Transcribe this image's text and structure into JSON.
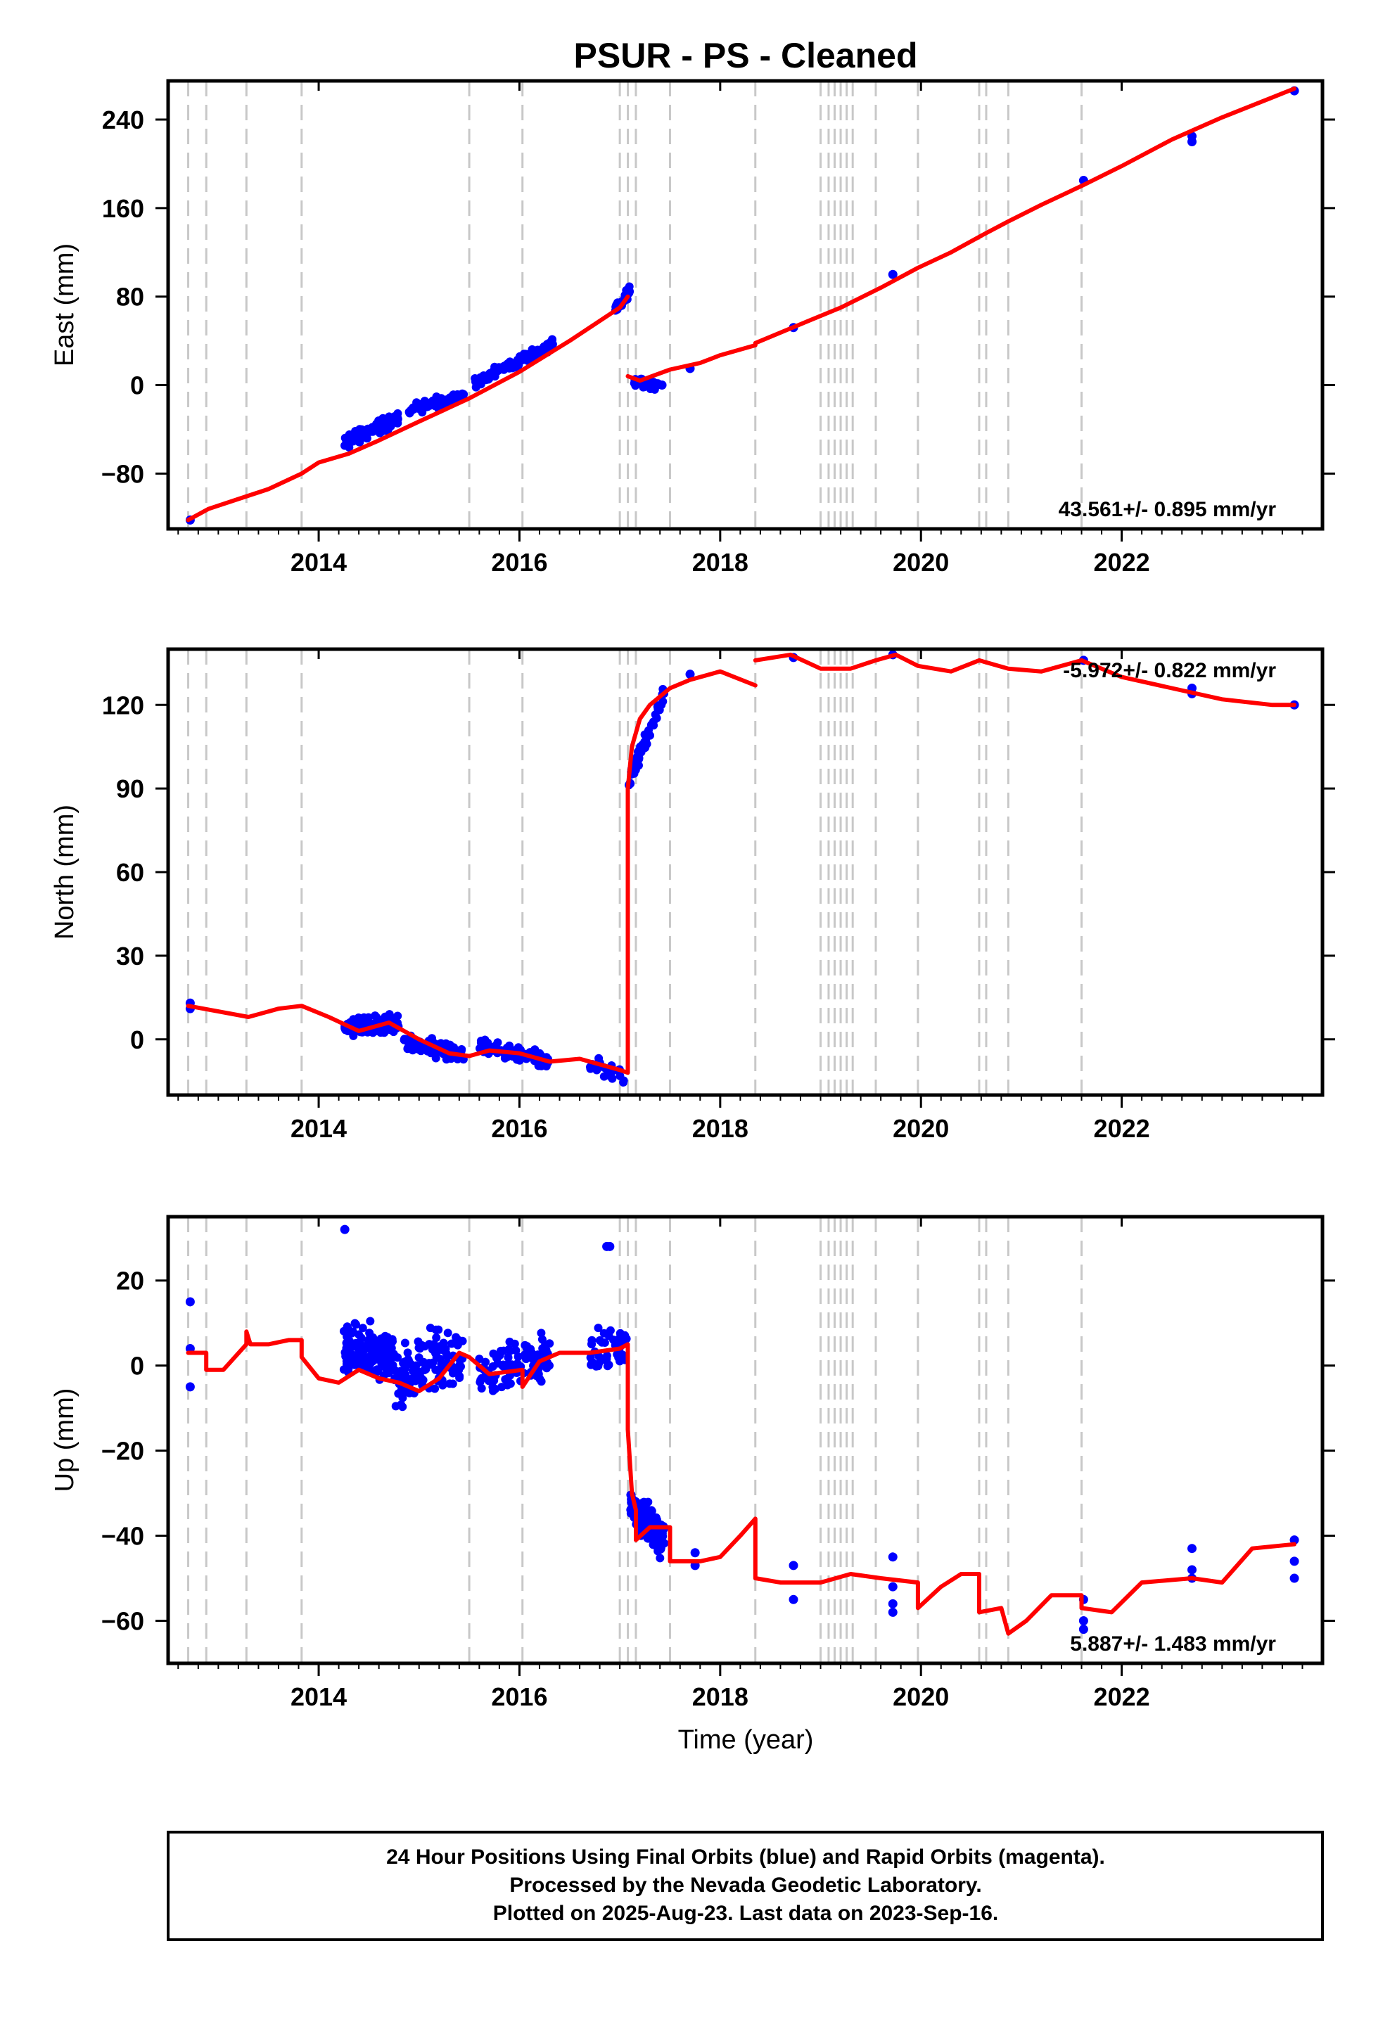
{
  "chart_data": {
    "type": "scatter",
    "title": "PSUR  - PS - Cleaned",
    "xlabel": "Time (year)",
    "xlim": [
      2012.5,
      2024.0
    ],
    "x_ticks": [
      2014,
      2016,
      2018,
      2020,
      2022
    ],
    "event_lines": [
      2012.7,
      2012.88,
      2013.28,
      2013.83,
      2015.5,
      2016.03,
      2017.0,
      2017.08,
      2017.16,
      2017.5,
      2018.35,
      2019.0,
      2019.08,
      2019.14,
      2019.2,
      2019.26,
      2019.32,
      2019.55,
      2019.97,
      2020.58,
      2020.65,
      2020.87,
      2021.6
    ],
    "series_info": [
      {
        "role": "observations",
        "color": "#0000ff"
      },
      {
        "role": "model",
        "color": "#ff0000"
      }
    ],
    "panels": [
      {
        "ylabel": "East (mm)",
        "ylim": [
          -130,
          275
        ],
        "y_ticks": [
          -80,
          0,
          80,
          160,
          240
        ],
        "y_tick_labels": [
          "−80",
          "0",
          "80",
          "160",
          "240"
        ],
        "rate_text": "43.561+/- 0.895 mm/yr",
        "rate_position": "bottom-right",
        "model_segments": [
          [
            [
              2012.7,
              -122
            ],
            [
              2012.9,
              -112
            ],
            [
              2013.2,
              -103
            ],
            [
              2013.5,
              -94
            ],
            [
              2013.83,
              -80
            ],
            [
              2014.0,
              -70
            ],
            [
              2014.3,
              -62
            ],
            [
              2014.6,
              -50
            ],
            [
              2015.0,
              -33
            ],
            [
              2015.5,
              -12
            ],
            [
              2016.0,
              12
            ],
            [
              2016.5,
              40
            ],
            [
              2017.0,
              70
            ],
            [
              2017.08,
              80
            ]
          ],
          [
            [
              2017.08,
              8
            ],
            [
              2017.2,
              4
            ],
            [
              2017.5,
              14
            ],
            [
              2017.8,
              20
            ],
            [
              2018.0,
              27
            ],
            [
              2018.35,
              36
            ]
          ],
          [
            [
              2018.35,
              38
            ],
            [
              2018.8,
              55
            ],
            [
              2019.2,
              70
            ],
            [
              2019.6,
              88
            ],
            [
              2019.97,
              106
            ],
            [
              2020.3,
              120
            ],
            [
              2020.6,
              135
            ],
            [
              2020.87,
              148
            ],
            [
              2021.2,
              163
            ],
            [
              2021.6,
              180
            ],
            [
              2022.0,
              198
            ],
            [
              2022.5,
              222
            ],
            [
              2023.0,
              242
            ],
            [
              2023.5,
              260
            ],
            [
              2023.72,
              268
            ]
          ]
        ],
        "observations": {
          "points": [
            [
              2012.72,
              -122
            ],
            [
              2017.42,
              0
            ],
            [
              2017.7,
              15
            ],
            [
              2018.73,
              52
            ],
            [
              2019.72,
              100
            ],
            [
              2021.62,
              185
            ],
            [
              2022.7,
              225
            ],
            [
              2022.7,
              220
            ],
            [
              2023.72,
              266
            ]
          ],
          "clusters": [
            {
              "x_range": [
                2014.25,
                2014.8
              ],
              "trend": [
                -52,
                -30
              ],
              "noise": 5,
              "count": 120
            },
            {
              "x_range": [
                2014.9,
                2015.45
              ],
              "trend": [
                -22,
                -10
              ],
              "noise": 4,
              "count": 80
            },
            {
              "x_range": [
                2015.55,
                2016.35
              ],
              "trend": [
                2,
                38
              ],
              "noise": 4,
              "count": 110
            },
            {
              "x_range": [
                2016.95,
                2017.1
              ],
              "trend": [
                70,
                84
              ],
              "noise": 5,
              "count": 35
            },
            {
              "x_range": [
                2017.12,
                2017.38
              ],
              "trend": [
                4,
                -1
              ],
              "noise": 3,
              "count": 40
            }
          ]
        }
      },
      {
        "ylabel": "North (mm)",
        "ylim": [
          -20,
          140
        ],
        "y_ticks": [
          0,
          30,
          60,
          90,
          120
        ],
        "y_tick_labels": [
          "0",
          "30",
          "60",
          "90",
          "120"
        ],
        "rate_text": "-5.972+/- 0.822 mm/yr",
        "rate_position": "top-right",
        "model_segments": [
          [
            [
              2012.7,
              12
            ],
            [
              2013.0,
              10
            ],
            [
              2013.3,
              8
            ],
            [
              2013.6,
              11
            ],
            [
              2013.83,
              12
            ],
            [
              2014.1,
              8
            ],
            [
              2014.4,
              3
            ],
            [
              2014.7,
              6
            ],
            [
              2015.0,
              0
            ],
            [
              2015.3,
              -5
            ],
            [
              2015.5,
              -6
            ],
            [
              2015.7,
              -4
            ],
            [
              2016.0,
              -5
            ],
            [
              2016.3,
              -8
            ],
            [
              2016.6,
              -7
            ],
            [
              2017.0,
              -11
            ],
            [
              2017.08,
              -12
            ],
            [
              2017.08,
              90
            ],
            [
              2017.12,
              105
            ],
            [
              2017.2,
              115
            ],
            [
              2017.3,
              120
            ],
            [
              2017.5,
              126
            ],
            [
              2017.7,
              129
            ],
            [
              2018.0,
              132
            ],
            [
              2018.35,
              127
            ]
          ],
          [
            [
              2018.35,
              136
            ],
            [
              2018.7,
              138
            ],
            [
              2019.0,
              133
            ],
            [
              2019.3,
              133
            ],
            [
              2019.55,
              136
            ],
            [
              2019.75,
              138
            ],
            [
              2019.97,
              134
            ],
            [
              2020.3,
              132
            ],
            [
              2020.58,
              136
            ],
            [
              2020.87,
              133
            ],
            [
              2021.2,
              132
            ],
            [
              2021.6,
              136
            ],
            [
              2022.0,
              130
            ],
            [
              2022.5,
              126
            ],
            [
              2023.0,
              122
            ],
            [
              2023.5,
              120
            ],
            [
              2023.72,
              120
            ]
          ]
        ],
        "observations": {
          "points": [
            [
              2012.72,
              13
            ],
            [
              2012.72,
              11
            ],
            [
              2017.7,
              131
            ],
            [
              2018.73,
              137
            ],
            [
              2019.72,
              138
            ],
            [
              2021.62,
              136
            ],
            [
              2022.7,
              126
            ],
            [
              2022.7,
              124
            ],
            [
              2023.72,
              120
            ]
          ],
          "clusters": [
            {
              "x_range": [
                2014.25,
                2014.8
              ],
              "trend": [
                4,
                6
              ],
              "noise": 2.5,
              "count": 130
            },
            {
              "x_range": [
                2014.85,
                2015.45
              ],
              "trend": [
                -1,
                -6
              ],
              "noise": 2.5,
              "count": 80
            },
            {
              "x_range": [
                2015.6,
                2016.3
              ],
              "trend": [
                -3,
                -8
              ],
              "noise": 2.5,
              "count": 90
            },
            {
              "x_range": [
                2016.7,
                2017.05
              ],
              "trend": [
                -9,
                -14
              ],
              "noise": 3,
              "count": 25
            },
            {
              "x_range": [
                2017.08,
                2017.45
              ],
              "trend": [
                92,
                124
              ],
              "noise": 3,
              "count": 60
            }
          ]
        }
      },
      {
        "ylabel": "Up (mm)",
        "ylim": [
          -70,
          35
        ],
        "y_ticks": [
          -60,
          -40,
          -20,
          0,
          20
        ],
        "y_tick_labels": [
          "−60",
          "−40",
          "−20",
          "0",
          "20"
        ],
        "rate_text": "5.887+/- 1.483 mm/yr",
        "rate_position": "bottom-right",
        "model_segments": [
          [
            [
              2012.7,
              3
            ],
            [
              2012.88,
              3
            ],
            [
              2012.88,
              -1
            ],
            [
              2013.05,
              -1
            ],
            [
              2013.28,
              5
            ],
            [
              2013.28,
              8
            ],
            [
              2013.32,
              5
            ],
            [
              2013.5,
              5
            ],
            [
              2013.7,
              6
            ],
            [
              2013.83,
              6
            ],
            [
              2013.83,
              2
            ],
            [
              2014.0,
              -3
            ],
            [
              2014.2,
              -4
            ],
            [
              2014.4,
              -1
            ],
            [
              2014.6,
              -3
            ],
            [
              2014.8,
              -4
            ],
            [
              2015.0,
              -6
            ],
            [
              2015.2,
              -3
            ],
            [
              2015.4,
              3
            ],
            [
              2015.5,
              2
            ],
            [
              2015.7,
              -2
            ],
            [
              2016.03,
              -1
            ],
            [
              2016.03,
              -5
            ],
            [
              2016.2,
              1
            ],
            [
              2016.4,
              3
            ],
            [
              2016.7,
              3
            ],
            [
              2017.0,
              4
            ],
            [
              2017.08,
              5
            ],
            [
              2017.08,
              -15
            ],
            [
              2017.12,
              -30
            ],
            [
              2017.16,
              -34
            ],
            [
              2017.16,
              -41
            ],
            [
              2017.3,
              -38
            ],
            [
              2017.5,
              -38
            ],
            [
              2017.5,
              -46
            ],
            [
              2017.8,
              -46
            ],
            [
              2018.0,
              -45
            ],
            [
              2018.2,
              -40
            ],
            [
              2018.35,
              -36
            ],
            [
              2018.35,
              -50
            ],
            [
              2018.6,
              -51
            ],
            [
              2019.0,
              -51
            ],
            [
              2019.3,
              -49
            ],
            [
              2019.6,
              -50
            ],
            [
              2019.97,
              -51
            ],
            [
              2019.97,
              -57
            ],
            [
              2020.2,
              -52
            ],
            [
              2020.4,
              -49
            ],
            [
              2020.58,
              -49
            ],
            [
              2020.58,
              -58
            ],
            [
              2020.8,
              -57
            ],
            [
              2020.87,
              -63
            ],
            [
              2021.05,
              -60
            ],
            [
              2021.3,
              -54
            ],
            [
              2021.6,
              -54
            ],
            [
              2021.6,
              -57
            ],
            [
              2021.9,
              -58
            ],
            [
              2022.2,
              -51
            ],
            [
              2022.7,
              -50
            ],
            [
              2023.0,
              -51
            ],
            [
              2023.3,
              -43
            ],
            [
              2023.72,
              -42
            ]
          ]
        ],
        "observations": {
          "points": [
            [
              2012.72,
              15
            ],
            [
              2012.72,
              4
            ],
            [
              2012.72,
              -5
            ],
            [
              2014.26,
              32
            ],
            [
              2016.87,
              28
            ],
            [
              2016.9,
              28
            ],
            [
              2017.75,
              -44
            ],
            [
              2017.75,
              -47
            ],
            [
              2018.73,
              -47
            ],
            [
              2018.73,
              -55
            ],
            [
              2019.72,
              -45
            ],
            [
              2019.72,
              -52
            ],
            [
              2019.72,
              -56
            ],
            [
              2019.72,
              -58
            ],
            [
              2021.62,
              -55
            ],
            [
              2021.62,
              -60
            ],
            [
              2021.62,
              -62
            ],
            [
              2022.7,
              -43
            ],
            [
              2022.7,
              -48
            ],
            [
              2022.7,
              -50
            ],
            [
              2023.72,
              -41
            ],
            [
              2023.72,
              -46
            ],
            [
              2023.72,
              -50
            ]
          ],
          "clusters": [
            {
              "x_range": [
                2014.25,
                2014.75
              ],
              "trend": [
                4,
                2
              ],
              "noise": 5,
              "count": 140
            },
            {
              "x_range": [
                2014.75,
                2015.45
              ],
              "trend": [
                -3,
                3
              ],
              "noise": 6,
              "count": 120
            },
            {
              "x_range": [
                2015.6,
                2016.3
              ],
              "trend": [
                -2,
                3
              ],
              "noise": 5,
              "count": 110
            },
            {
              "x_range": [
                2016.7,
                2017.08
              ],
              "trend": [
                2,
                5
              ],
              "noise": 5,
              "count": 40
            },
            {
              "x_range": [
                2017.1,
                2017.45
              ],
              "trend": [
                -33,
                -41
              ],
              "noise": 4,
              "count": 120
            }
          ]
        }
      }
    ],
    "footer": [
      "24 Hour Positions Using Final Orbits (blue) and Rapid Orbits (magenta).",
      "Processed by the Nevada Geodetic Laboratory.",
      "Plotted on 2025-Aug-23. Last data on 2023-Sep-16."
    ]
  }
}
